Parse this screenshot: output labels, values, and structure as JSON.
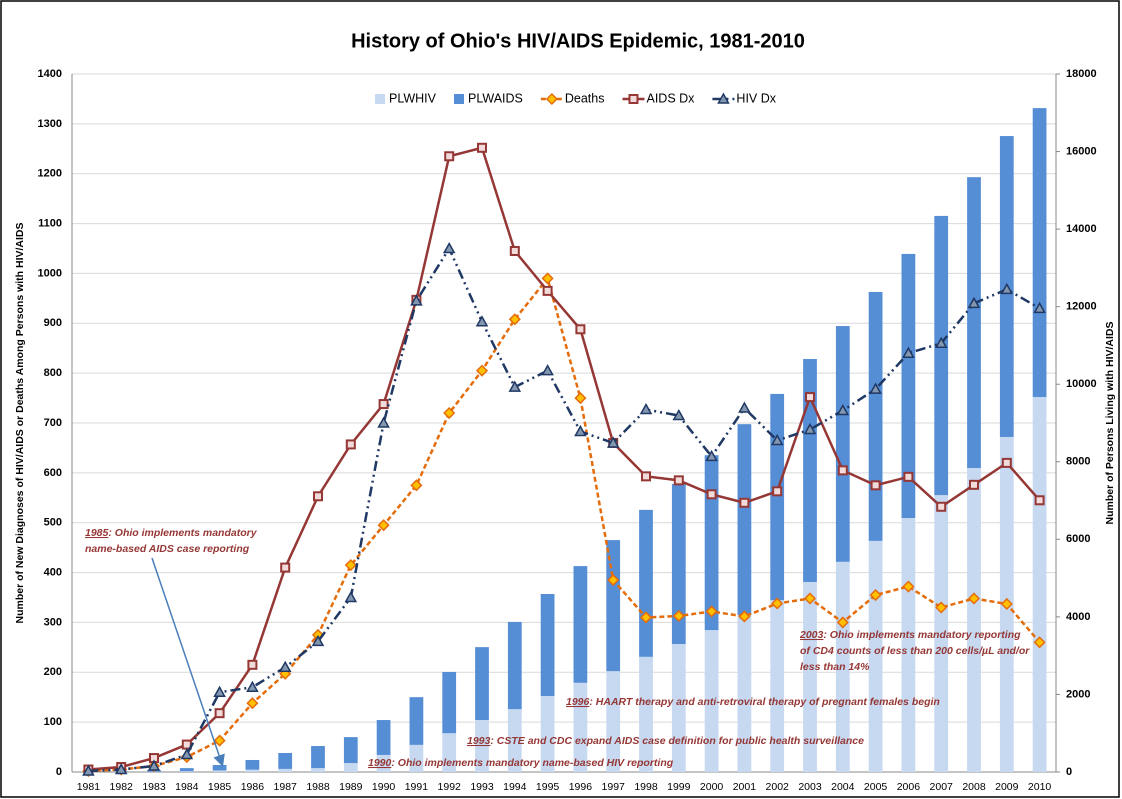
{
  "chart_data": {
    "type": "combo",
    "title": "History of Ohio's HIV/AIDS Epidemic, 1981-2010",
    "y_label": "Number of New Diagnoses of HIV/AIDS or Deaths Among Persons with HIV/AIDS",
    "y2_label": "Number of Persons Living with HIV/AIDS",
    "categories": [
      "1981",
      "1982",
      "1983",
      "1984",
      "1985",
      "1986",
      "1987",
      "1988",
      "1989",
      "1990",
      "1991",
      "1992",
      "1993",
      "1994",
      "1995",
      "1996",
      "1997",
      "1998",
      "1999",
      "2000",
      "2001",
      "2002",
      "2003",
      "2004",
      "2005",
      "2006",
      "2007",
      "2008",
      "2009",
      "2010"
    ],
    "ylim": [
      0,
      1400
    ],
    "yticks": [
      0,
      100,
      200,
      300,
      400,
      500,
      600,
      700,
      800,
      900,
      1000,
      1100,
      1200,
      1300,
      1400
    ],
    "y2lim": [
      0,
      18000
    ],
    "y2ticks": [
      0,
      2000,
      4000,
      6000,
      8000,
      10000,
      12000,
      14000,
      16000,
      18000
    ],
    "grid": true,
    "legend": "top",
    "series": [
      {
        "name": "PLWHIV",
        "type": "bar",
        "axis": "y2",
        "color": "#c6d9f1",
        "values": [
          0,
          5,
          10,
          20,
          40,
          60,
          80,
          100,
          230,
          440,
          700,
          1000,
          1340,
          1620,
          1960,
          2300,
          2600,
          2970,
          3300,
          3660,
          4050,
          4430,
          4900,
          5420,
          5960,
          6550,
          7140,
          7840,
          8640,
          9670
        ]
      },
      {
        "name": "PLWAIDS",
        "type": "bar",
        "axis": "y2",
        "color": "#558ed5",
        "values": [
          0,
          15,
          40,
          80,
          140,
          250,
          410,
          570,
          670,
          900,
          1230,
          1580,
          1880,
          2250,
          2630,
          3010,
          3380,
          3790,
          4130,
          4510,
          4920,
          5320,
          5750,
          6080,
          6420,
          6810,
          7200,
          7500,
          7760,
          7450
        ]
      },
      {
        "name": "Deaths",
        "type": "line",
        "color": "#e46c0a",
        "marker": "diamond",
        "marker_fill": "#ffc000",
        "line_style": "dashed",
        "values": [
          2,
          5,
          12,
          30,
          63,
          138,
          197,
          275,
          415,
          495,
          575,
          720,
          805,
          908,
          990,
          750,
          385,
          310,
          313,
          322,
          312,
          338,
          348,
          300,
          355,
          372,
          330,
          348,
          337,
          260
        ]
      },
      {
        "name": "AIDS Dx",
        "type": "line",
        "color": "#953735",
        "marker": "square",
        "marker_fill": "#f2dcdb",
        "line_style": "solid",
        "values": [
          5,
          10,
          28,
          55,
          118,
          215,
          410,
          553,
          657,
          738,
          947,
          1235,
          1252,
          1045,
          965,
          888,
          660,
          593,
          585,
          557,
          540,
          563,
          752,
          605,
          575,
          592,
          532,
          576,
          620,
          545
        ]
      },
      {
        "name": "HIV Dx",
        "type": "line",
        "color": "#1f3864",
        "marker": "triangle",
        "marker_fill": "#8497b0",
        "line_style": "dashdot",
        "values": [
          2,
          5,
          12,
          35,
          160,
          170,
          210,
          262,
          350,
          700,
          945,
          1050,
          903,
          772,
          805,
          683,
          660,
          727,
          715,
          633,
          730,
          665,
          687,
          725,
          768,
          840,
          860,
          940,
          968,
          930
        ]
      }
    ],
    "annotations": [
      {
        "year": "1985",
        "lines": [
          ": Ohio implements mandatory",
          "name-based AIDS case reporting"
        ]
      },
      {
        "year": "1990",
        "lines": [
          ": Ohio implements mandatory name-based HIV reporting"
        ]
      },
      {
        "year": "1993",
        "lines": [
          ": CSTE and CDC expand AIDS case definition for public health surveillance"
        ]
      },
      {
        "year": "1996",
        "lines": [
          ": HAART therapy and anti-retroviral therapy of pregnant females begin"
        ]
      },
      {
        "year": "2003",
        "lines": [
          ": Ohio implements mandatory reporting",
          "of CD4 counts of less than 200 cells/µL and/or",
          "less than 14%"
        ]
      }
    ]
  }
}
